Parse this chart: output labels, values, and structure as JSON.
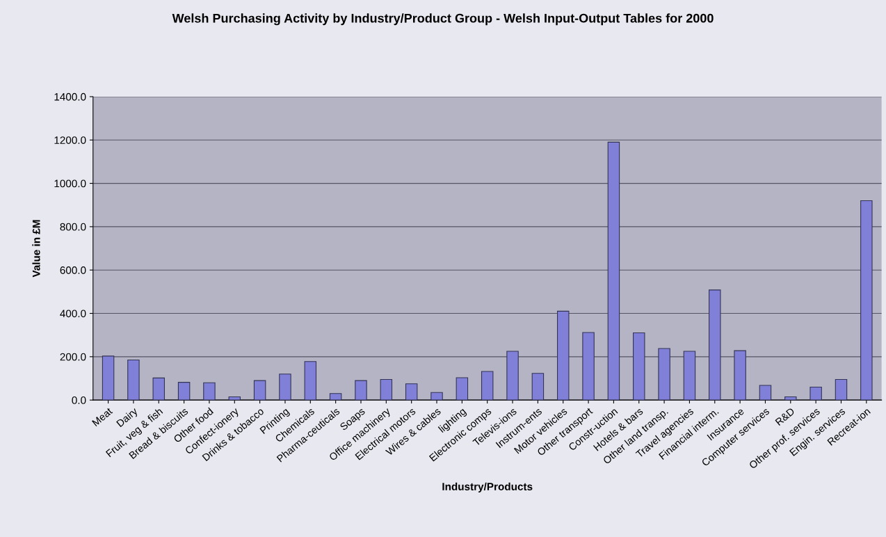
{
  "chart_data": {
    "type": "bar",
    "title": "Welsh Purchasing Activity by Industry/Product Group - Welsh Input-Output Tables for 2000",
    "xlabel": "Industry/Products",
    "ylabel": "Value in £M",
    "categories": [
      "Meat",
      "Dairy",
      "Fruit, veg & fish",
      "Bread & biscuits",
      "Other food",
      "Confect-ionery",
      "Drinks & tobacco",
      "Printing",
      "Chemicals",
      "Pharma-ceuticals",
      "Soaps",
      "Office machinery",
      "Electrical motors",
      "Wires & cables",
      "lighting",
      "Electronic comps",
      "Televis-ions",
      "Instrum-ents",
      "Motor vehicles",
      "Other transport",
      "Constr-uction",
      "Hotels & bars",
      "Other land transp.",
      "Travel agencies",
      "Financial interm.",
      "Insurance",
      "Computer services",
      "R&D",
      "Other prof. services",
      "Engin. services",
      "Recreat-ion"
    ],
    "values": [
      203,
      185,
      102,
      82,
      80,
      15,
      90,
      120,
      178,
      30,
      90,
      95,
      75,
      35,
      103,
      132,
      225,
      123,
      410,
      312,
      1190,
      310,
      238,
      225,
      508,
      228,
      68,
      15,
      60,
      95,
      920
    ],
    "color": "#8080d8",
    "ylim": [
      0,
      1400
    ],
    "yticks": [
      {
        "value": 0,
        "label": "0.0"
      },
      {
        "value": 200,
        "label": "200.0"
      },
      {
        "value": 400,
        "label": "400.0"
      },
      {
        "value": 600,
        "label": "600.0"
      },
      {
        "value": 800,
        "label": "800.0"
      },
      {
        "value": 1000,
        "label": "1000.0"
      },
      {
        "value": 1200,
        "label": "1200.0"
      },
      {
        "value": 1400,
        "label": "1400.0"
      }
    ],
    "grid": "y"
  }
}
